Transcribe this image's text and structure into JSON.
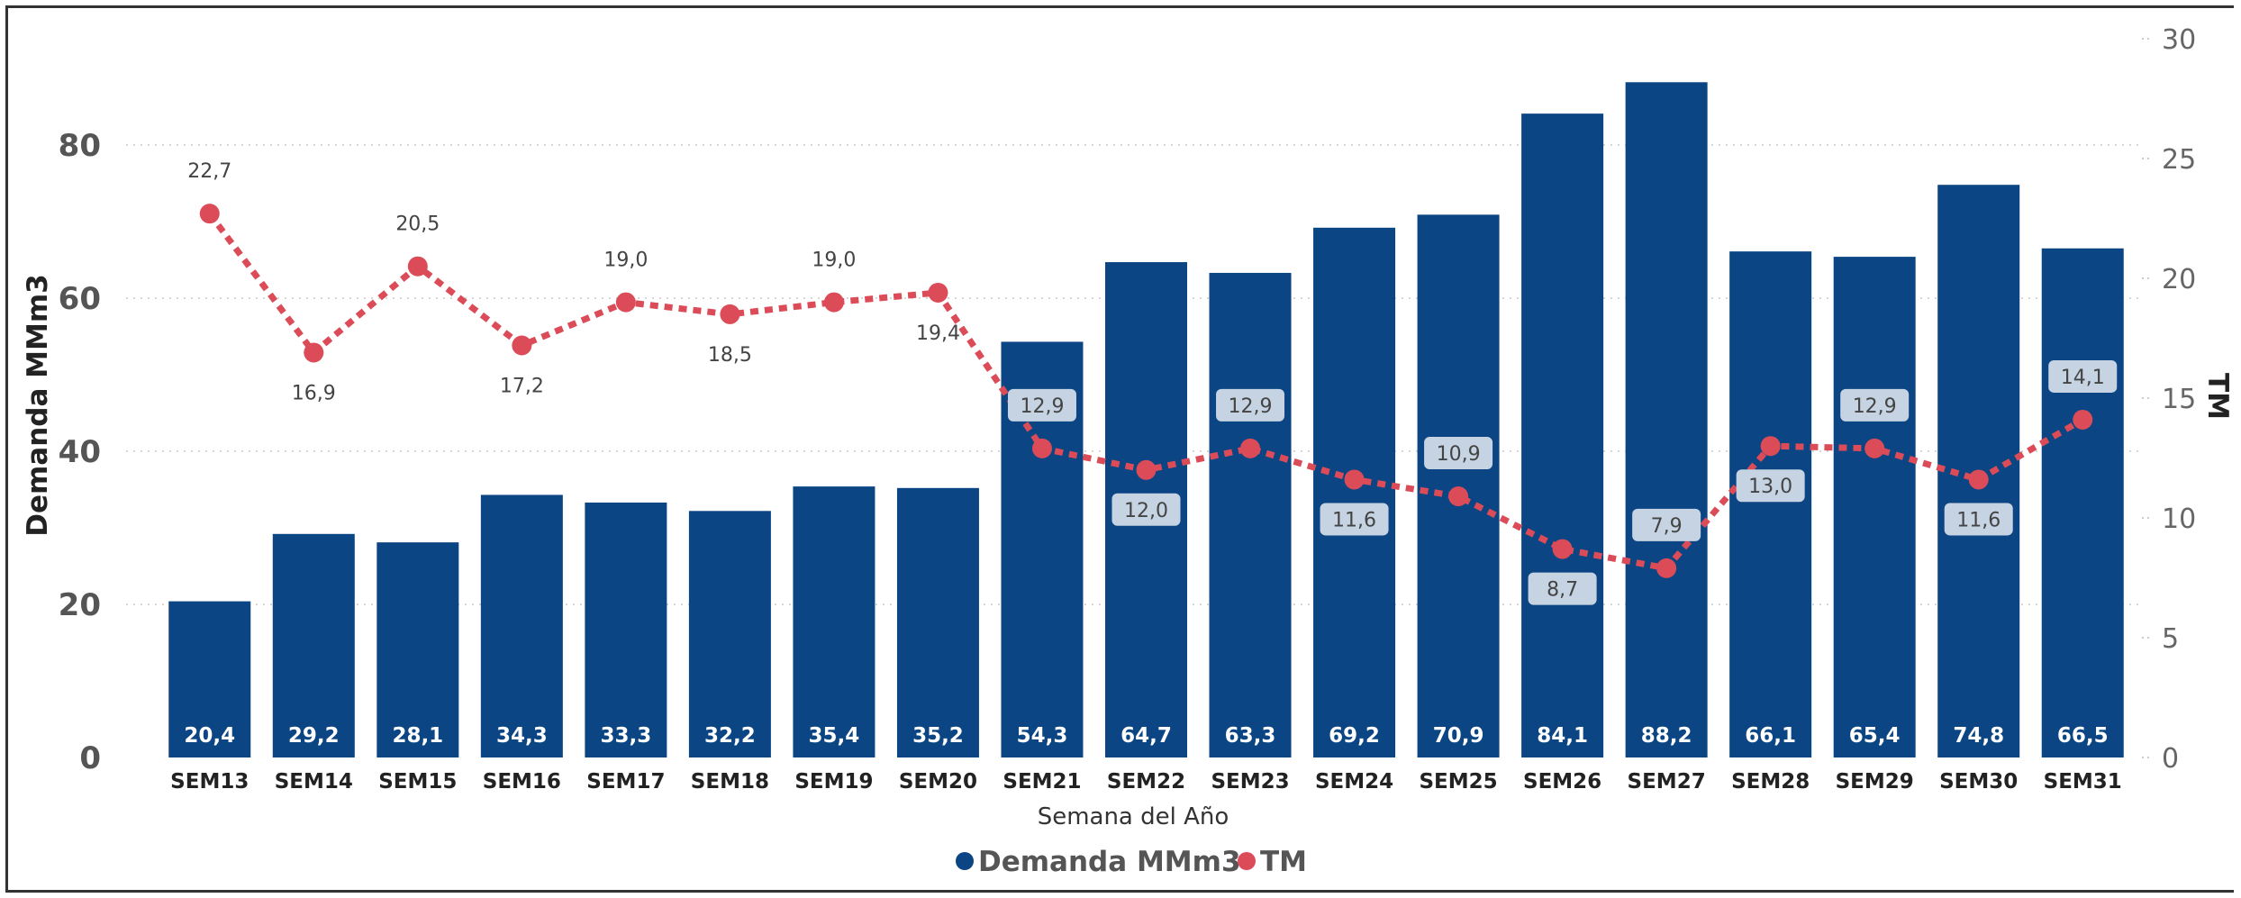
{
  "chart_data": {
    "type": "bar",
    "categories": [
      "SEM13",
      "SEM14",
      "SEM15",
      "SEM16",
      "SEM17",
      "SEM18",
      "SEM19",
      "SEM20",
      "SEM21",
      "SEM22",
      "SEM23",
      "SEM24",
      "SEM25",
      "SEM26",
      "SEM27",
      "SEM28",
      "SEM29",
      "SEM30",
      "SEM31"
    ],
    "series": [
      {
        "name": "Demanda MMm3",
        "type": "bar",
        "axis": "left",
        "values": [
          20.4,
          29.2,
          28.1,
          34.3,
          33.3,
          32.2,
          35.4,
          35.2,
          54.3,
          64.7,
          63.3,
          69.2,
          70.9,
          84.1,
          88.2,
          66.1,
          65.4,
          74.8,
          66.5
        ],
        "labels": [
          "20,4",
          "29,2",
          "28,1",
          "34,3",
          "33,3",
          "32,2",
          "35,4",
          "35,2",
          "54,3",
          "64,7",
          "63,3",
          "69,2",
          "70,9",
          "84,1",
          "88,2",
          "66,1",
          "65,4",
          "74,8",
          "66,5"
        ],
        "color": "#0b4583"
      },
      {
        "name": "TM",
        "type": "line",
        "axis": "right",
        "style": "dotted",
        "values": [
          22.7,
          16.9,
          20.5,
          17.2,
          19.0,
          18.5,
          19.0,
          19.4,
          12.9,
          12.0,
          12.9,
          11.6,
          10.9,
          8.7,
          7.9,
          13.0,
          12.9,
          11.6,
          14.1
        ],
        "labels": [
          "22,7",
          "16,9",
          "20,5",
          "17,2",
          "19,0",
          "18,5",
          "19,0",
          "19,4",
          "12,9",
          "12,0",
          "12,9",
          "11,6",
          "10,9",
          "8,7",
          "7,9",
          "13,0",
          "12,9",
          "11,6",
          "14,1"
        ],
        "color": "#dc4c58"
      }
    ],
    "xlabel": "Semana del Año",
    "ylabel": "Demanda MMm3",
    "y2label": "TM",
    "ylim": [
      0,
      94.4
    ],
    "y2lim": [
      0,
      30
    ],
    "yticks": [
      0,
      20,
      40,
      60,
      80
    ],
    "y2ticks": [
      0,
      5,
      10,
      15,
      20,
      25,
      30
    ],
    "grid": true,
    "legend": "bottom-center"
  }
}
